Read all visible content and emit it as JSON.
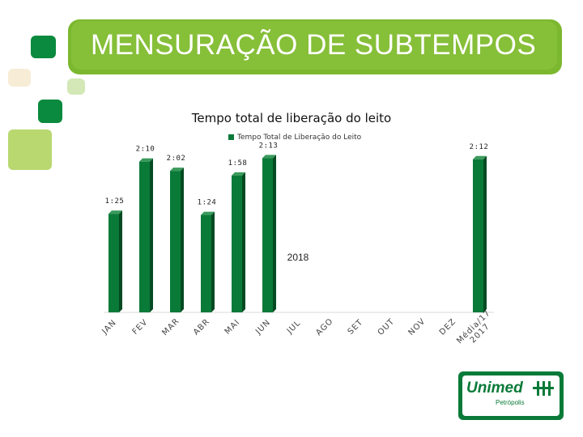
{
  "slide": {
    "title": "MENSURAÇÃO DE SUBTEMPOS",
    "accent_color": "#86bf38",
    "dark_green": "#0a7a38"
  },
  "logo": {
    "name": "Unimed",
    "city": "Petrópolis"
  },
  "chart_data": {
    "type": "bar",
    "title": "Tempo total de liberação do leito",
    "legend_position": "top",
    "series": [
      {
        "name": "Tempo Total de Liberação do Leito",
        "color": "#0a7a38",
        "values": [
          85,
          130,
          122,
          84,
          118,
          133,
          null,
          null,
          null,
          null,
          null,
          null,
          132
        ],
        "labels": [
          "1:25",
          "2:10",
          "2:02",
          "1:24",
          "1:58",
          "2:13",
          "",
          "",
          "",
          "",
          "",
          "",
          "2:12"
        ]
      }
    ],
    "categories": [
      "JAN",
      "FEV",
      "MAR",
      "ABR",
      "MAI",
      "JUN",
      "JUL",
      "AGO",
      "SET",
      "OUT",
      "NOV",
      "DEZ",
      "Média/17 2017"
    ],
    "category_lines": [
      [
        "JAN"
      ],
      [
        "FEV"
      ],
      [
        "MAR"
      ],
      [
        "ABR"
      ],
      [
        "MAI"
      ],
      [
        "JUN"
      ],
      [
        "JUL"
      ],
      [
        "AGO"
      ],
      [
        "SET"
      ],
      [
        "OUT"
      ],
      [
        "NOV"
      ],
      [
        "DEZ"
      ],
      [
        "Média/17",
        "2017"
      ]
    ],
    "annotation": "2018",
    "y_unit": "minutes",
    "ylim": [
      0,
      150
    ],
    "grid": false
  }
}
